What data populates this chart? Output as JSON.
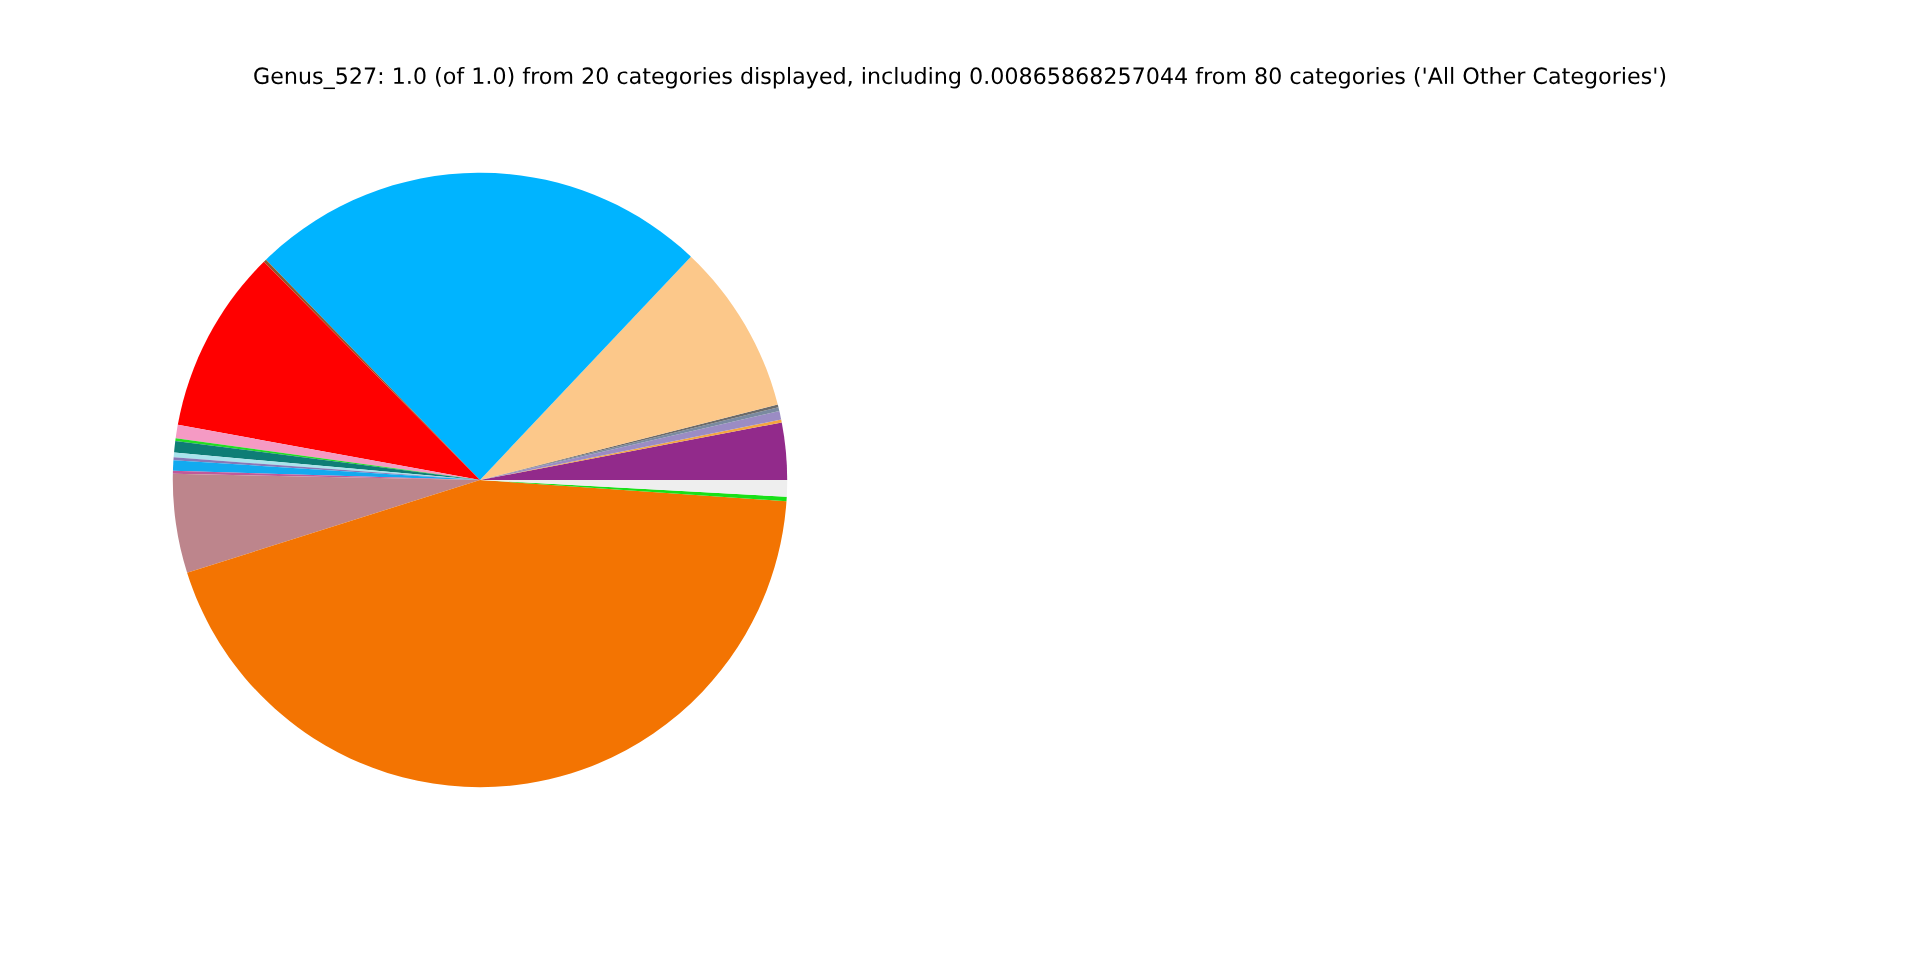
{
  "chart_data": {
    "type": "pie",
    "title": "Genus_527: 1.0 (of 1.0) from 20 categories displayed, including 0.00865868257044 from 80 categories ('All Other Categories')",
    "categories": [
      null,
      null,
      null,
      null,
      null,
      null,
      null,
      null,
      null,
      null,
      null,
      null,
      null,
      null,
      null,
      null,
      null,
      null,
      null,
      null
    ],
    "values": [
      3.0,
      0.15,
      0.45,
      0.2,
      0.15,
      9.0,
      24.3,
      0.15,
      9.7,
      0.7,
      0.15,
      0.6,
      0.25,
      0.15,
      0.55,
      0.15,
      5.2,
      44.0,
      0.23,
      0.87
    ],
    "colors": [
      "#922a8b",
      "#f4a640",
      "#9b8cc4",
      "#7a8aa0",
      "#6b6b6b",
      "#fcc88a",
      "#00b4ff",
      "#8b5a2b",
      "#ff0000",
      "#f59ac4",
      "#22dd22",
      "#0e7d76",
      "#a8e4ec",
      "#8878b8",
      "#12aaf0",
      "#c05a9a",
      "#bd858c",
      "#f37402",
      "#18e018",
      "#eeeeee"
    ]
  }
}
